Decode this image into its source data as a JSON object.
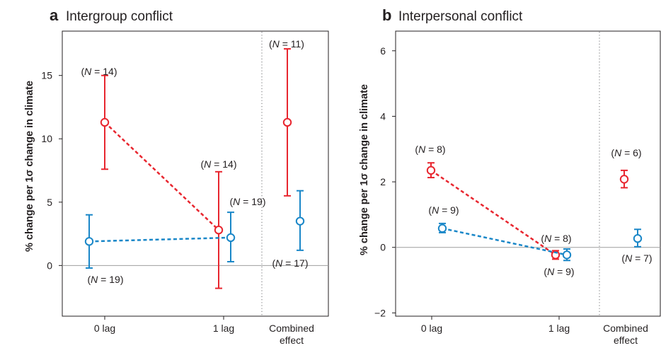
{
  "colors": {
    "series_red": "#e8262f",
    "series_blue": "#1a87c8",
    "axis": "#231f20"
  },
  "chart_data": [
    {
      "type": "scatter",
      "panel_letter": "a",
      "title": "Intergroup conflict",
      "ylabel": "% change per 1σ change in climate",
      "ylim": [
        -4,
        18.5
      ],
      "yticks": [
        0,
        5,
        10,
        15
      ],
      "categories": [
        "0 lag",
        "1 lag",
        "Combined\neffect"
      ],
      "series": [
        {
          "color": "#e8262f",
          "points": [
            {
              "cat": 0,
              "y": 11.3,
              "low": 7.6,
              "high": 15.0,
              "n_label": "(N = 14)"
            },
            {
              "cat": 1,
              "y": 2.8,
              "low": -1.8,
              "high": 7.4,
              "n_label": "(N = 14)"
            },
            {
              "cat": 2,
              "y": 11.3,
              "low": 5.5,
              "high": 17.1,
              "n_label": "(N = 11)"
            }
          ]
        },
        {
          "color": "#1a87c8",
          "points": [
            {
              "cat": 0,
              "y": 1.9,
              "low": -0.2,
              "high": 4.0,
              "n_label": "(N = 19)"
            },
            {
              "cat": 1,
              "y": 2.2,
              "low": 0.3,
              "high": 4.2,
              "n_label": "(N = 19)"
            },
            {
              "cat": 2,
              "y": 3.5,
              "low": 1.2,
              "high": 5.9,
              "n_label": "(N = 17)"
            }
          ]
        }
      ]
    },
    {
      "type": "scatter",
      "panel_letter": "b",
      "title": "Interpersonal conflict",
      "ylabel": "% change per 1σ change in climate",
      "ylim": [
        -2.1,
        6.6
      ],
      "yticks": [
        -2,
        0,
        2,
        4,
        6
      ],
      "categories": [
        "0 lag",
        "1 lag",
        "Combined\neffect"
      ],
      "series": [
        {
          "color": "#e8262f",
          "points": [
            {
              "cat": 0,
              "y": 2.35,
              "low": 2.13,
              "high": 2.58,
              "n_label": "(N = 8)"
            },
            {
              "cat": 1,
              "y": -0.23,
              "low": -0.36,
              "high": -0.1,
              "n_label": "(N = 8)"
            },
            {
              "cat": 2,
              "y": 2.08,
              "low": 1.82,
              "high": 2.35,
              "n_label": "(N = 6)"
            }
          ]
        },
        {
          "color": "#1a87c8",
          "points": [
            {
              "cat": 0,
              "y": 0.58,
              "low": 0.45,
              "high": 0.73,
              "n_label": "(N = 9)"
            },
            {
              "cat": 1,
              "y": -0.23,
              "low": -0.4,
              "high": -0.05,
              "n_label": "(N = 9)"
            },
            {
              "cat": 2,
              "y": 0.27,
              "low": 0.02,
              "high": 0.55,
              "n_label": "(N = 7)"
            }
          ]
        }
      ]
    }
  ]
}
